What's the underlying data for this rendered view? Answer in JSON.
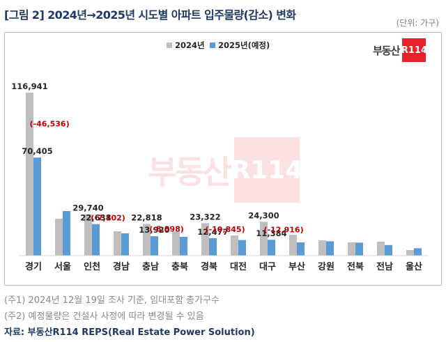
{
  "header": {
    "title": "[그림 2] 2024년→2025년 시도별 아파트 입주물량(감소) 변화",
    "unit": "(단위: 가구)"
  },
  "logo": {
    "text": "부동산",
    "badge": "R114"
  },
  "colors": {
    "series_2024": "#bfbfbf",
    "series_2025": "#5b9bd5",
    "annotation": "#c00000",
    "title": "#1f3864"
  },
  "chart_data": {
    "type": "bar",
    "categories": [
      "경기",
      "서울",
      "인천",
      "경남",
      "충남",
      "충북",
      "경북",
      "대전",
      "대구",
      "부산",
      "강원",
      "전북",
      "전남",
      "울산"
    ],
    "series": [
      {
        "name": "2024년",
        "values": [
          116941,
          26500,
          29740,
          17500,
          22818,
          17500,
          23322,
          14500,
          24300,
          15000,
          11000,
          9500,
          10000,
          4000
        ]
      },
      {
        "name": "2025년(예정)",
        "values": [
          70405,
          32000,
          22638,
          16000,
          13920,
          13500,
          12477,
          11200,
          11384,
          9500,
          10300,
          9300,
          7600,
          5300
        ]
      }
    ],
    "value_labels": [
      {
        "category": "경기",
        "series": 0,
        "text": "116,941"
      },
      {
        "category": "경기",
        "series": 1,
        "text": "70,405"
      },
      {
        "category": "인천",
        "series": 0,
        "text": "29,740"
      },
      {
        "category": "인천",
        "series": 1,
        "text": "22,638"
      },
      {
        "category": "충남",
        "series": 0,
        "text": "22,818"
      },
      {
        "category": "충남",
        "series": 1,
        "text": "13,920"
      },
      {
        "category": "경북",
        "series": 0,
        "text": "23,322"
      },
      {
        "category": "경북",
        "series": 1,
        "text": "12,477"
      },
      {
        "category": "대구",
        "series": 0,
        "text": "24,300"
      },
      {
        "category": "대구",
        "series": 1,
        "text": "11,384"
      }
    ],
    "change_labels": [
      {
        "category": "경기",
        "text": "(-46,536)"
      },
      {
        "category": "인천",
        "text": "(-7,102)"
      },
      {
        "category": "충남",
        "text": "(-8,898)"
      },
      {
        "category": "경북",
        "text": "(-10,845)"
      },
      {
        "category": "대구",
        "text": "(-12,916)"
      }
    ],
    "ylim": [
      0,
      130000
    ],
    "legend": "top-right",
    "grid": false
  },
  "notes": {
    "note1": "(주1) 2024년 12월 19일 조사 기준, 임대포함 총가구수",
    "note2": "(주2) 예정물량은 건설사 사정에 따라 변경될 수 있음"
  },
  "source": "자료: 부동산R114 REPS(Real Estate Power Solution)"
}
